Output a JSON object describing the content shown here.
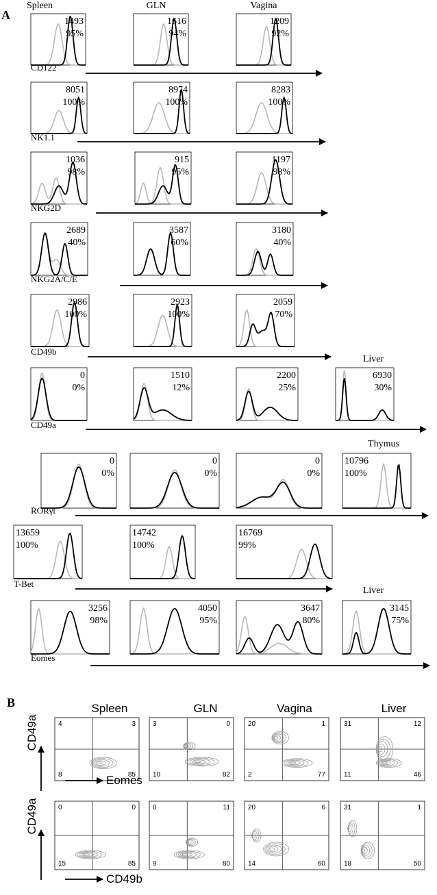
{
  "panel_a": {
    "label": "A",
    "columns": [
      "Spleen",
      "GLN",
      "Vagina"
    ],
    "rows": [
      {
        "marker": "CD122",
        "plots": [
          {
            "mfi": 1493,
            "pct": "95%"
          },
          {
            "mfi": 1616,
            "pct": "94%"
          },
          {
            "mfi": 1209,
            "pct": "92%"
          }
        ]
      },
      {
        "marker": "NK1.1",
        "plots": [
          {
            "mfi": 8051,
            "pct": "100%"
          },
          {
            "mfi": 8974,
            "pct": "100%"
          },
          {
            "mfi": 8283,
            "pct": "100%"
          }
        ]
      },
      {
        "marker": "NKG2D",
        "plots": [
          {
            "mfi": 1036,
            "pct": "98%"
          },
          {
            "mfi": 915,
            "pct": "95%"
          },
          {
            "mfi": 1197,
            "pct": "98%"
          }
        ]
      },
      {
        "marker": "NKG2A/C/E",
        "plots": [
          {
            "mfi": 2689,
            "pct": "40%"
          },
          {
            "mfi": 3587,
            "pct": "60%"
          },
          {
            "mfi": 3180,
            "pct": "40%"
          }
        ]
      },
      {
        "marker": "CD49b",
        "plots": [
          {
            "mfi": 2986,
            "pct": "100%"
          },
          {
            "mfi": 2923,
            "pct": "100%"
          },
          {
            "mfi": 2059,
            "pct": "70%"
          }
        ]
      },
      {
        "marker": "CD49a",
        "extra_column": "Liver",
        "plots": [
          {
            "mfi": 0,
            "pct": "0%"
          },
          {
            "mfi": 1510,
            "pct": "12%"
          },
          {
            "mfi": 2200,
            "pct": "25%"
          },
          {
            "mfi": 6930,
            "pct": "30%"
          }
        ]
      },
      {
        "marker": "RORγt",
        "extra_column": "Thymus",
        "plots": [
          {
            "mfi": 0,
            "pct": "0%"
          },
          {
            "mfi": 0,
            "pct": "0%"
          },
          {
            "mfi": 0,
            "pct": "0%"
          },
          {
            "mfi": 10796,
            "pct": "100%"
          }
        ]
      },
      {
        "marker": "T-Bet",
        "plots": [
          {
            "mfi": 13659,
            "pct": "100%"
          },
          {
            "mfi": 14742,
            "pct": "100%"
          },
          {
            "mfi": 16769,
            "pct": "99%"
          }
        ]
      },
      {
        "marker": "Eomes",
        "extra_column": "Liver",
        "plots": [
          {
            "mfi": 3256,
            "pct": "98%"
          },
          {
            "mfi": 4050,
            "pct": "95%"
          },
          {
            "mfi": 3647,
            "pct": "80%"
          },
          {
            "mfi": 3145,
            "pct": "75%"
          }
        ]
      }
    ]
  },
  "panel_b": {
    "label": "B",
    "columns": [
      "Spleen",
      "GLN",
      "Vagina",
      "Liver"
    ],
    "rows": [
      {
        "y_label": "CD49a",
        "x_label": "Eomes",
        "plots": [
          [
            4,
            3,
            8,
            85
          ],
          [
            3,
            0,
            10,
            82
          ],
          [
            20,
            1,
            2,
            77
          ],
          [
            31,
            12,
            11,
            46
          ]
        ]
      },
      {
        "y_label": "CD49a",
        "x_label": "CD49b",
        "plots": [
          [
            0,
            0,
            15,
            85
          ],
          [
            0,
            11,
            9,
            80
          ],
          [
            20,
            6,
            14,
            60
          ],
          [
            31,
            1,
            18,
            50
          ]
        ]
      }
    ]
  }
}
